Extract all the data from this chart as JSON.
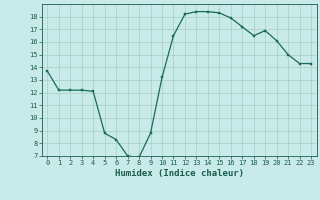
{
  "x": [
    0,
    1,
    2,
    3,
    4,
    5,
    6,
    7,
    8,
    9,
    10,
    11,
    12,
    13,
    14,
    15,
    16,
    17,
    18,
    19,
    20,
    21,
    22,
    23
  ],
  "y": [
    13.7,
    12.2,
    12.2,
    12.2,
    12.1,
    8.8,
    8.3,
    7.0,
    6.9,
    8.8,
    13.2,
    16.5,
    18.2,
    18.4,
    18.4,
    18.3,
    17.9,
    17.2,
    16.5,
    16.9,
    16.1,
    15.0,
    14.3,
    14.3
  ],
  "line_color": "#1a6b5a",
  "marker_color": "#1a6b5a",
  "bg_color": "#c8eae8",
  "grid_color": "#a8ccc8",
  "xlabel": "Humidex (Indice chaleur)",
  "xlim": [
    -0.5,
    23.5
  ],
  "ylim": [
    7,
    19
  ],
  "yticks": [
    7,
    8,
    9,
    10,
    11,
    12,
    13,
    14,
    15,
    16,
    17,
    18
  ],
  "xticks": [
    0,
    1,
    2,
    3,
    4,
    5,
    6,
    7,
    8,
    9,
    10,
    11,
    12,
    13,
    14,
    15,
    16,
    17,
    18,
    19,
    20,
    21,
    22,
    23
  ],
  "tick_fontsize": 5.0,
  "xlabel_fontsize": 6.5,
  "label_color": "#1a5c50",
  "spine_color": "#1a5c50"
}
